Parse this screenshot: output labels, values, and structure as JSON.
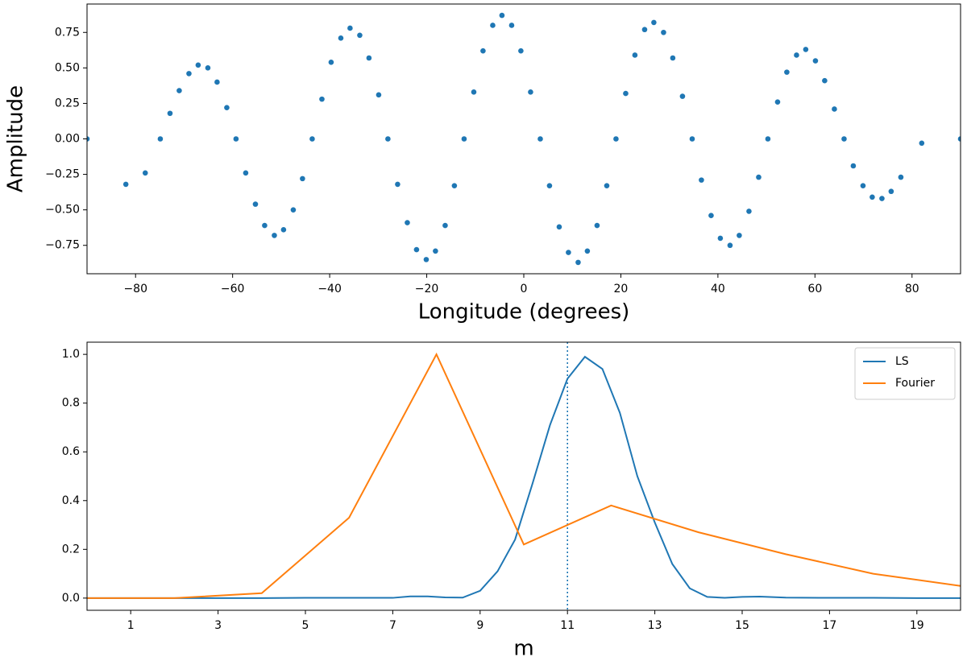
{
  "chart_data": [
    {
      "type": "scatter",
      "xlabel": "Longitude (degrees)",
      "ylabel": "Amplitude",
      "color": "#1f77b4",
      "xlim": [
        -90,
        90
      ],
      "ylim": [
        -0.95,
        0.95
      ],
      "xticks": [
        {
          "value": -80,
          "label": "−80"
        },
        {
          "value": -60,
          "label": "−60"
        },
        {
          "value": -40,
          "label": "−40"
        },
        {
          "value": -20,
          "label": "−20"
        },
        0,
        20,
        40,
        60,
        80
      ],
      "yticks": [
        {
          "value": -0.75,
          "label": "−0.75"
        },
        {
          "value": -0.5,
          "label": "−0.50"
        },
        {
          "value": -0.25,
          "label": "−0.25"
        },
        {
          "value": 0,
          "label": "0.00"
        },
        0.25,
        {
          "value": 0.5,
          "label": "0.50"
        },
        0.75
      ],
      "x": [
        -90,
        -82,
        -78,
        -74.9,
        -72.9,
        -71.0,
        -69.0,
        -67.1,
        -65.1,
        -63.2,
        -61.2,
        -59.3,
        -57.3,
        -55.3,
        -53.4,
        -51.4,
        -49.5,
        -47.5,
        -45.6,
        -43.6,
        -41.6,
        -39.7,
        -37.7,
        -35.8,
        -33.8,
        -31.9,
        -29.9,
        -28.0,
        -26.0,
        -24.0,
        -22.1,
        -20.1,
        -18.2,
        -16.2,
        -14.3,
        -12.3,
        -10.3,
        -8.4,
        -6.4,
        -4.5,
        -2.5,
        -0.6,
        1.4,
        3.4,
        5.3,
        7.3,
        9.2,
        11.2,
        13.1,
        15.1,
        17.1,
        19.0,
        21.0,
        22.9,
        24.9,
        26.8,
        28.8,
        30.7,
        32.7,
        34.7,
        36.6,
        38.6,
        40.5,
        42.5,
        44.4,
        46.4,
        48.4,
        50.3,
        52.3,
        54.2,
        56.2,
        58.1,
        60.1,
        62.0,
        64.0,
        66.0,
        67.9,
        69.9,
        71.8,
        73.8,
        75.7,
        77.7,
        82,
        90
      ],
      "values": [
        0,
        -0.32,
        -0.24,
        0,
        0.18,
        0.34,
        0.46,
        0.52,
        0.5,
        0.4,
        0.22,
        0,
        -0.24,
        -0.46,
        -0.61,
        -0.68,
        -0.64,
        -0.5,
        -0.28,
        0,
        0.28,
        0.54,
        0.71,
        0.78,
        0.73,
        0.57,
        0.31,
        0,
        -0.32,
        -0.59,
        -0.78,
        -0.85,
        -0.79,
        -0.61,
        -0.33,
        0,
        0.33,
        0.62,
        0.8,
        0.87,
        0.8,
        0.62,
        0.33,
        0,
        -0.33,
        -0.62,
        -0.8,
        -0.87,
        -0.79,
        -0.61,
        -0.33,
        0,
        0.32,
        0.59,
        0.77,
        0.82,
        0.75,
        0.57,
        0.3,
        0,
        -0.29,
        -0.54,
        -0.7,
        -0.75,
        -0.68,
        -0.51,
        -0.27,
        0,
        0.26,
        0.47,
        0.59,
        0.63,
        0.55,
        0.41,
        0.21,
        0,
        -0.19,
        -0.33,
        -0.41,
        -0.42,
        -0.37,
        -0.27,
        -0.03,
        0
      ]
    },
    {
      "type": "line",
      "xlabel": "m",
      "legend": "upper right",
      "xlim": [
        0,
        20
      ],
      "ylim": [
        -0.05,
        1.05
      ],
      "xticks": [
        1,
        3,
        5,
        7,
        9,
        11,
        13,
        15,
        17,
        19
      ],
      "yticks": [
        {
          "value": 0,
          "label": "0.0"
        },
        0.2,
        0.4,
        0.6,
        0.8,
        {
          "value": 1,
          "label": "1.0"
        }
      ],
      "vline": 11,
      "vline_color": "#1f77b4",
      "series": [
        {
          "name": "LS",
          "color": "#1f77b4",
          "x": [
            0,
            1,
            2,
            3,
            4,
            5,
            6,
            7,
            7.4,
            7.8,
            8.2,
            8.6,
            9.0,
            9.4,
            9.8,
            10.2,
            10.6,
            11.0,
            11.4,
            11.8,
            12.2,
            12.6,
            13.0,
            13.4,
            13.8,
            14.2,
            14.6,
            15.0,
            15.4,
            16,
            17,
            18,
            19,
            20
          ],
          "values": [
            0,
            0,
            0,
            0,
            0,
            0.001,
            0.001,
            0.001,
            0.007,
            0.007,
            0.003,
            0.002,
            0.03,
            0.11,
            0.24,
            0.47,
            0.71,
            0.9,
            0.99,
            0.94,
            0.76,
            0.5,
            0.31,
            0.14,
            0.04,
            0.005,
            0.001,
            0.005,
            0.006,
            0.002,
            0.001,
            0.001,
            0,
            0
          ]
        },
        {
          "name": "Fourier",
          "color": "#ff7f0e",
          "x": [
            0,
            2,
            4,
            6,
            8,
            10,
            12,
            14,
            16,
            18,
            20
          ],
          "values": [
            0,
            0,
            0.02,
            0.33,
            1.0,
            0.22,
            0.38,
            0.27,
            0.18,
            0.1,
            0.05
          ]
        }
      ]
    }
  ]
}
